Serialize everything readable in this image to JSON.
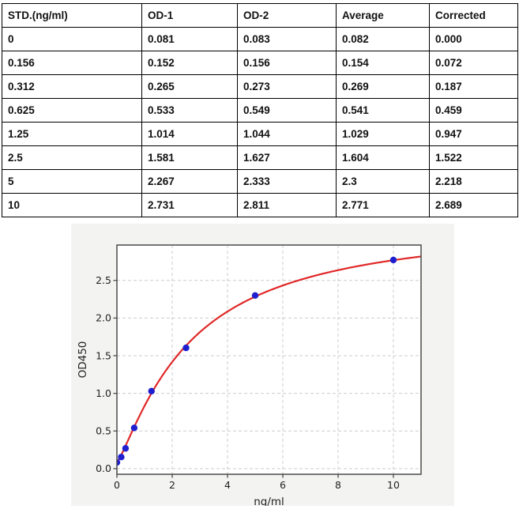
{
  "table": {
    "columns": [
      "STD.(ng/ml)",
      "OD-1",
      "OD-2",
      "Average",
      "Corrected"
    ],
    "rows": [
      [
        "0",
        "0.081",
        "0.083",
        "0.082",
        "0.000"
      ],
      [
        "0.156",
        "0.152",
        "0.156",
        "0.154",
        "0.072"
      ],
      [
        "0.312",
        "0.265",
        "0.273",
        "0.269",
        "0.187"
      ],
      [
        "0.625",
        "0.533",
        "0.549",
        "0.541",
        "0.459"
      ],
      [
        "1.25",
        "1.014",
        "1.044",
        "1.029",
        "0.947"
      ],
      [
        "2.5",
        "1.581",
        "1.627",
        "1.604",
        "1.522"
      ],
      [
        "5",
        "2.267",
        "2.333",
        "2.3",
        "2.218"
      ],
      [
        "10",
        "2.731",
        "2.811",
        "2.771",
        "2.689"
      ]
    ]
  },
  "chart_data": {
    "type": "scatter",
    "title": "",
    "xlabel": "ng/ml",
    "ylabel": "OD450",
    "x": [
      0,
      0.156,
      0.312,
      0.625,
      1.25,
      2.5,
      5,
      10
    ],
    "y": [
      0.082,
      0.154,
      0.269,
      0.541,
      1.029,
      1.604,
      2.3,
      2.771
    ],
    "xlim": [
      0,
      11
    ],
    "ylim": [
      -0.075,
      2.97
    ],
    "xticks": [
      0,
      2,
      4,
      6,
      8,
      10
    ],
    "yticks": [
      0.0,
      0.5,
      1.0,
      1.5,
      2.0,
      2.5
    ],
    "grid": "dashed",
    "legend": "none",
    "fit_curve": {
      "model": "4PL",
      "a": 0.082,
      "b": 1.22,
      "c": 2.65,
      "d": 3.3
    },
    "colors": {
      "points": "#1f1fd0",
      "curve": "#e02828",
      "figure_bg": "#f3f3f2",
      "axes_bg": "#ffffff",
      "grid": "#cccccc",
      "spine": "#4a4a4a",
      "text": "#1f1f1f"
    }
  }
}
